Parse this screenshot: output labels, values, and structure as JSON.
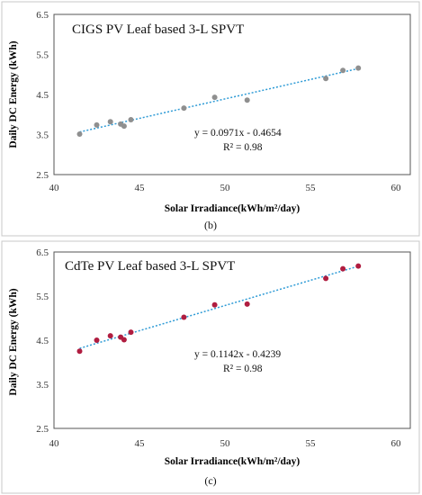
{
  "chart_data": [
    {
      "type": "scatter",
      "title": "CIGS PV Leaf based 3-L SPVT",
      "xlabel": "Solar Irradiance(kWh/m²/day)",
      "ylabel": "Daily DC Energy (kWh)",
      "xlim": [
        40,
        60
      ],
      "ylim": [
        2.5,
        6.5
      ],
      "xticks": [
        "40",
        "45",
        "50",
        "55",
        "60"
      ],
      "yticks": [
        "2.5",
        "3.5",
        "4.5",
        "5.5",
        "6.5"
      ],
      "series": [
        {
          "x": [
            41.5,
            42.5,
            43.3,
            43.9,
            44.1,
            44.5,
            47.6,
            49.4,
            51.3,
            55.9,
            56.9,
            57.8
          ],
          "y": [
            3.51,
            3.74,
            3.82,
            3.76,
            3.71,
            3.87,
            4.16,
            4.43,
            4.36,
            4.9,
            5.1,
            5.16
          ],
          "color": "#8f8f8f"
        }
      ],
      "trendline": {
        "slope": 0.0971,
        "intercept": -0.4654,
        "x_range": [
          41.5,
          57.8
        ],
        "color": "#2e9bd6"
      },
      "equation": "y = 0.0971x - 0.4654",
      "r2": "R² = 0.98",
      "caption": "(b)"
    },
    {
      "type": "scatter",
      "title": "CdTe PV Leaf based 3-L SPVT",
      "xlabel": "Solar Irradiance(kWh/m²/day)",
      "ylabel": "Daily DC Energy (kWh)",
      "xlim": [
        40,
        60
      ],
      "ylim": [
        2.5,
        6.5
      ],
      "xticks": [
        "40",
        "45",
        "50",
        "55",
        "60"
      ],
      "yticks": [
        "2.5",
        "3.5",
        "4.5",
        "5.5",
        "6.5"
      ],
      "series": [
        {
          "x": [
            41.5,
            42.5,
            43.3,
            43.9,
            44.1,
            44.5,
            47.6,
            49.4,
            51.3,
            55.9,
            56.9,
            57.8
          ],
          "y": [
            4.25,
            4.5,
            4.6,
            4.57,
            4.51,
            4.68,
            5.02,
            5.3,
            5.32,
            5.9,
            6.12,
            6.18
          ],
          "color": "#b01d40"
        }
      ],
      "trendline": {
        "slope": 0.1142,
        "intercept": -0.4239,
        "x_range": [
          41.5,
          57.8
        ],
        "color": "#2e9bd6"
      },
      "equation": "y = 0.1142x - 0.4239",
      "r2": "R² = 0.98",
      "caption": "(c)"
    }
  ]
}
